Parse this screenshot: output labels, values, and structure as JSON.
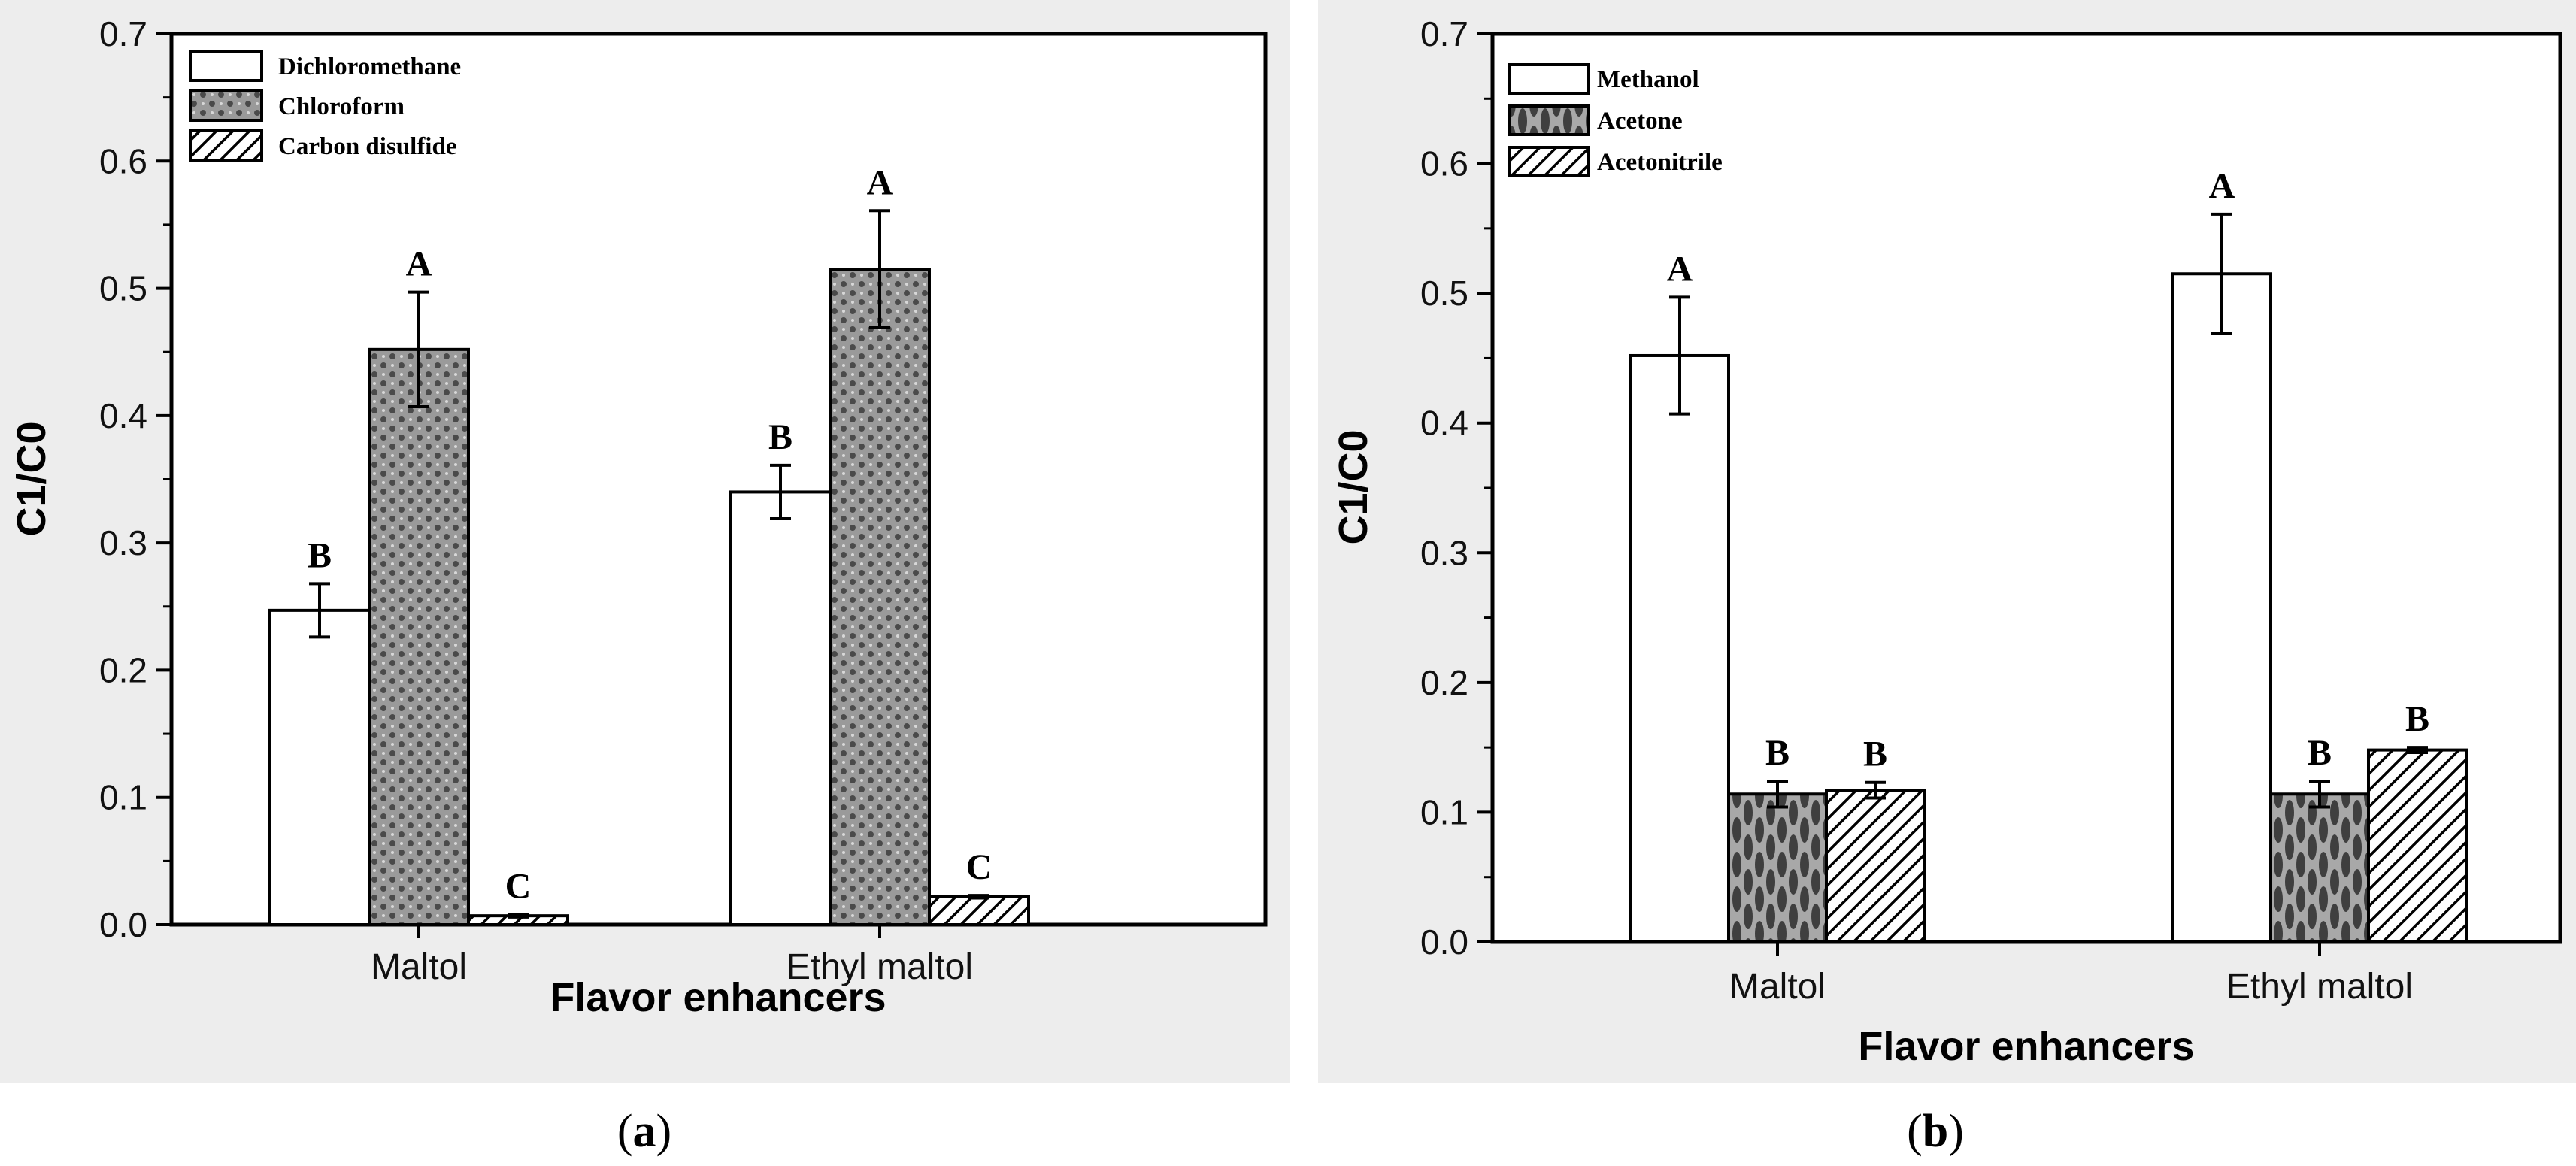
{
  "chart_data": [
    {
      "type": "bar",
      "caption_letter": "a",
      "xlabel": "Flavor enhancers",
      "ylabel": "C1/C0",
      "ylim": [
        0,
        0.7
      ],
      "yticks": [
        "0.0",
        "0.1",
        "0.2",
        "0.3",
        "0.4",
        "0.5",
        "0.6",
        "0.7"
      ],
      "categories": [
        "Maltol",
        "Ethyl maltol"
      ],
      "legend_position": "top-left",
      "series": [
        {
          "name": "Dichloromethane",
          "pattern": "white",
          "values": [
            0.247,
            0.34
          ],
          "errors": [
            0.021,
            0.021
          ],
          "labels": [
            "B",
            "B"
          ]
        },
        {
          "name": "Chloroform",
          "pattern": "dots",
          "values": [
            0.452,
            0.515
          ],
          "errors": [
            0.045,
            0.046
          ],
          "labels": [
            "A",
            "A"
          ]
        },
        {
          "name": "Carbon disulfide",
          "pattern": "hatch",
          "values": [
            0.007,
            0.022
          ],
          "errors": [
            0.001,
            0.001
          ],
          "labels": [
            "C",
            "C"
          ]
        }
      ]
    },
    {
      "type": "bar",
      "caption_letter": "b",
      "xlabel": "Flavor enhancers",
      "ylabel": "C1/C0",
      "ylim": [
        0,
        0.7
      ],
      "yticks": [
        "0.0",
        "0.1",
        "0.2",
        "0.3",
        "0.4",
        "0.5",
        "0.6",
        "0.7"
      ],
      "categories": [
        "Maltol",
        "Ethyl maltol"
      ],
      "legend_position": "top-left",
      "series": [
        {
          "name": "Methanol",
          "pattern": "white",
          "values": [
            0.452,
            0.515
          ],
          "errors": [
            0.045,
            0.046
          ],
          "labels": [
            "A",
            "A"
          ]
        },
        {
          "name": "Acetone",
          "pattern": "vdots",
          "values": [
            0.114,
            0.114
          ],
          "errors": [
            0.01,
            0.01
          ],
          "labels": [
            "B",
            "B"
          ]
        },
        {
          "name": "Acetonitrile",
          "pattern": "hatch",
          "values": [
            0.117,
            0.148
          ],
          "errors": [
            0.006,
            0.002
          ],
          "labels": [
            "B",
            "B"
          ]
        }
      ]
    }
  ]
}
